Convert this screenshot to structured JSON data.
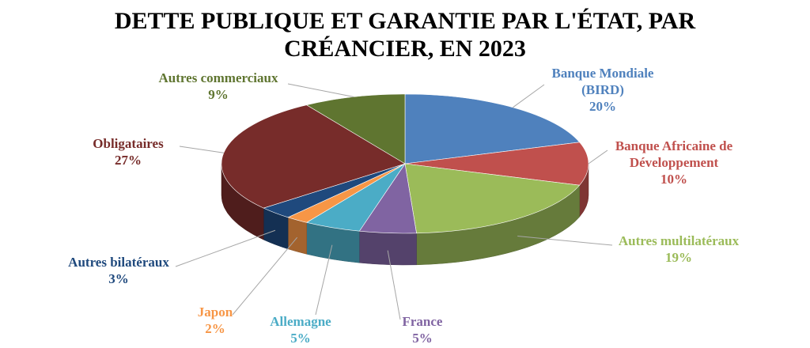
{
  "chart_data": {
    "type": "pie",
    "title_lines": [
      "DETTE PUBLIQUE ET GARANTIE PAR L'ÉTAT, PAR",
      "CRÉANCIER, EN 2023"
    ],
    "slices": [
      {
        "label_lines": [
          "Banque Mondiale",
          "(BIRD)"
        ],
        "value": 20,
        "value_label": "20%",
        "color": "#4f81bd"
      },
      {
        "label_lines": [
          "Banque Africaine de",
          "Développement"
        ],
        "value": 10,
        "value_label": "10%",
        "color": "#c0504d"
      },
      {
        "label_lines": [
          "Autres multilatéraux"
        ],
        "value": 19,
        "value_label": "19%",
        "color": "#9bbb59"
      },
      {
        "label_lines": [
          "France"
        ],
        "value": 5,
        "value_label": "5%",
        "color": "#8064a2"
      },
      {
        "label_lines": [
          "Allemagne"
        ],
        "value": 5,
        "value_label": "5%",
        "color": "#4bacc6"
      },
      {
        "label_lines": [
          "Japon"
        ],
        "value": 2,
        "value_label": "2%",
        "color": "#f79646"
      },
      {
        "label_lines": [
          "Autres bilatéraux"
        ],
        "value": 3,
        "value_label": "3%",
        "color": "#1f497d"
      },
      {
        "label_lines": [
          "Obligataires"
        ],
        "value": 27,
        "value_label": "27%",
        "color": "#772c2a"
      },
      {
        "label_lines": [
          "Autres commerciaux"
        ],
        "value": 9,
        "value_label": "9%",
        "color": "#5f7530"
      }
    ],
    "legend": "none",
    "style": "3d-pie"
  }
}
